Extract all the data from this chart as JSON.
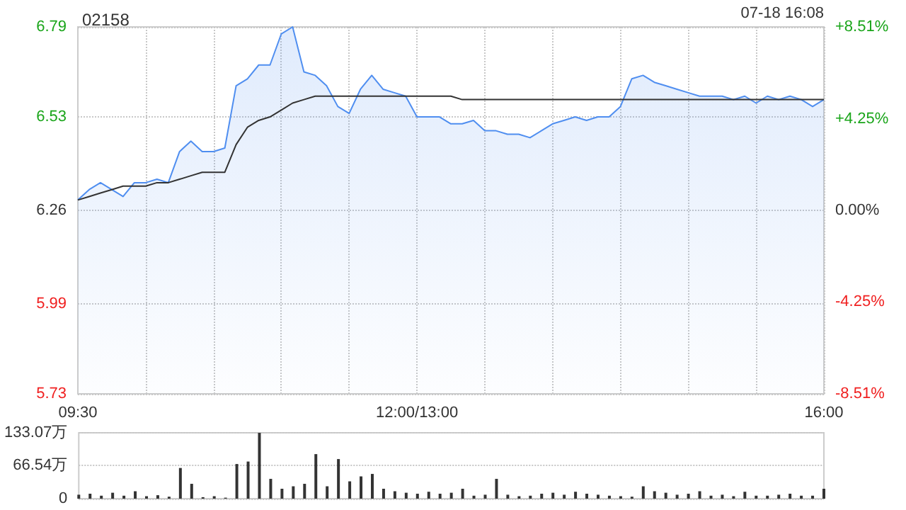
{
  "chart_data": [
    {
      "type": "line",
      "title": "02158",
      "annotations": [
        "07-18 16:08"
      ],
      "categories": [
        "09:30",
        null,
        null,
        null,
        null,
        null,
        null,
        null,
        null,
        null,
        null,
        null,
        null,
        null,
        null,
        null,
        null,
        null,
        null,
        null,
        null,
        null,
        null,
        null,
        null,
        null,
        null,
        null,
        null,
        null,
        "12:00/13:00",
        null,
        null,
        null,
        null,
        null,
        null,
        null,
        null,
        null,
        null,
        null,
        null,
        null,
        null,
        null,
        null,
        null,
        null,
        null,
        null,
        null,
        null,
        null,
        null,
        null,
        null,
        null,
        null,
        null,
        null,
        null,
        null,
        null,
        null,
        null,
        "16:00"
      ],
      "series": [
        {
          "type": "area",
          "color": "#4f8ef0",
          "values": [
            6.29,
            6.32,
            6.34,
            6.32,
            6.3,
            6.34,
            6.34,
            6.35,
            6.34,
            6.43,
            6.46,
            6.43,
            6.43,
            6.44,
            6.62,
            6.64,
            6.68,
            6.68,
            6.77,
            6.79,
            6.66,
            6.65,
            6.62,
            6.56,
            6.54,
            6.61,
            6.65,
            6.61,
            6.6,
            6.59,
            6.53,
            6.53,
            6.53,
            6.51,
            6.51,
            6.52,
            6.49,
            6.49,
            6.48,
            6.48,
            6.47,
            6.49,
            6.51,
            6.52,
            6.53,
            6.52,
            6.53,
            6.53,
            6.56,
            6.64,
            6.65,
            6.63,
            6.62,
            6.61,
            6.6,
            6.59,
            6.59,
            6.59,
            6.58,
            6.59,
            6.57,
            6.59,
            6.58,
            6.59,
            6.58,
            6.56,
            6.58
          ]
        },
        {
          "type": "line",
          "color": "#333333",
          "values": [
            6.29,
            6.3,
            6.31,
            6.32,
            6.33,
            6.33,
            6.33,
            6.34,
            6.34,
            6.35,
            6.36,
            6.37,
            6.37,
            6.37,
            6.45,
            6.5,
            6.52,
            6.53,
            6.55,
            6.57,
            6.58,
            6.59,
            6.59,
            6.59,
            6.59,
            6.59,
            6.59,
            6.59,
            6.59,
            6.59,
            6.59,
            6.59,
            6.59,
            6.59,
            6.58,
            6.58,
            6.58,
            6.58,
            6.58,
            6.58,
            6.58,
            6.58,
            6.58,
            6.58,
            6.58,
            6.58,
            6.58,
            6.58,
            6.58,
            6.58,
            6.58,
            6.58,
            6.58,
            6.58,
            6.58,
            6.58,
            6.58,
            6.58,
            6.58,
            6.58,
            6.58,
            6.58,
            6.58,
            6.58,
            6.58,
            6.58,
            6.58
          ]
        }
      ],
      "ylim": [
        5.73,
        6.79
      ],
      "yticks": [
        5.73,
        5.99,
        6.26,
        6.53,
        6.79
      ],
      "y2lim": [
        -8.51,
        8.51
      ],
      "y2ticks": [
        {
          "value": -8.51,
          "label": "-8.51%"
        },
        {
          "value": -4.25,
          "label": "-4.25%"
        },
        {
          "value": 0,
          "label": "0.00%"
        },
        {
          "value": 4.25,
          "label": "+4.25%"
        },
        {
          "value": 8.51,
          "label": "+8.51%"
        }
      ],
      "grid": true,
      "marker": "none"
    },
    {
      "type": "bar",
      "color": "#333333",
      "categories": [
        null,
        null,
        null,
        null,
        null,
        null,
        null,
        null,
        null,
        null,
        null,
        null,
        null,
        null,
        null,
        null,
        null,
        null,
        null,
        null,
        null,
        null,
        null,
        null,
        null,
        null,
        null,
        null,
        null,
        null,
        null,
        null,
        null,
        null,
        null,
        null,
        null,
        null,
        null,
        null,
        null,
        null,
        null,
        null,
        null,
        null,
        null,
        null,
        null,
        null,
        null,
        null,
        null,
        null,
        null,
        null,
        null,
        null,
        null,
        null,
        null,
        null,
        null,
        null,
        null,
        null,
        null
      ],
      "values": [
        8,
        10,
        6,
        12,
        6,
        15,
        5,
        7,
        4,
        62,
        30,
        3,
        5,
        2,
        70,
        75,
        133,
        40,
        20,
        25,
        30,
        90,
        25,
        80,
        35,
        45,
        50,
        20,
        15,
        12,
        10,
        14,
        10,
        12,
        20,
        6,
        8,
        40,
        8,
        5,
        6,
        10,
        12,
        8,
        14,
        10,
        8,
        6,
        5,
        4,
        25,
        15,
        12,
        8,
        10,
        15,
        6,
        8,
        5,
        14,
        6,
        6,
        8,
        10,
        6,
        6,
        20
      ],
      "ylim": [
        0,
        133.07
      ],
      "yticks": [
        0,
        {
          "value": 66.54,
          "label": "66.54万"
        },
        {
          "value": 133.07,
          "label": "133.07万"
        }
      ],
      "grid": "y",
      "tick_labels": "y"
    }
  ]
}
